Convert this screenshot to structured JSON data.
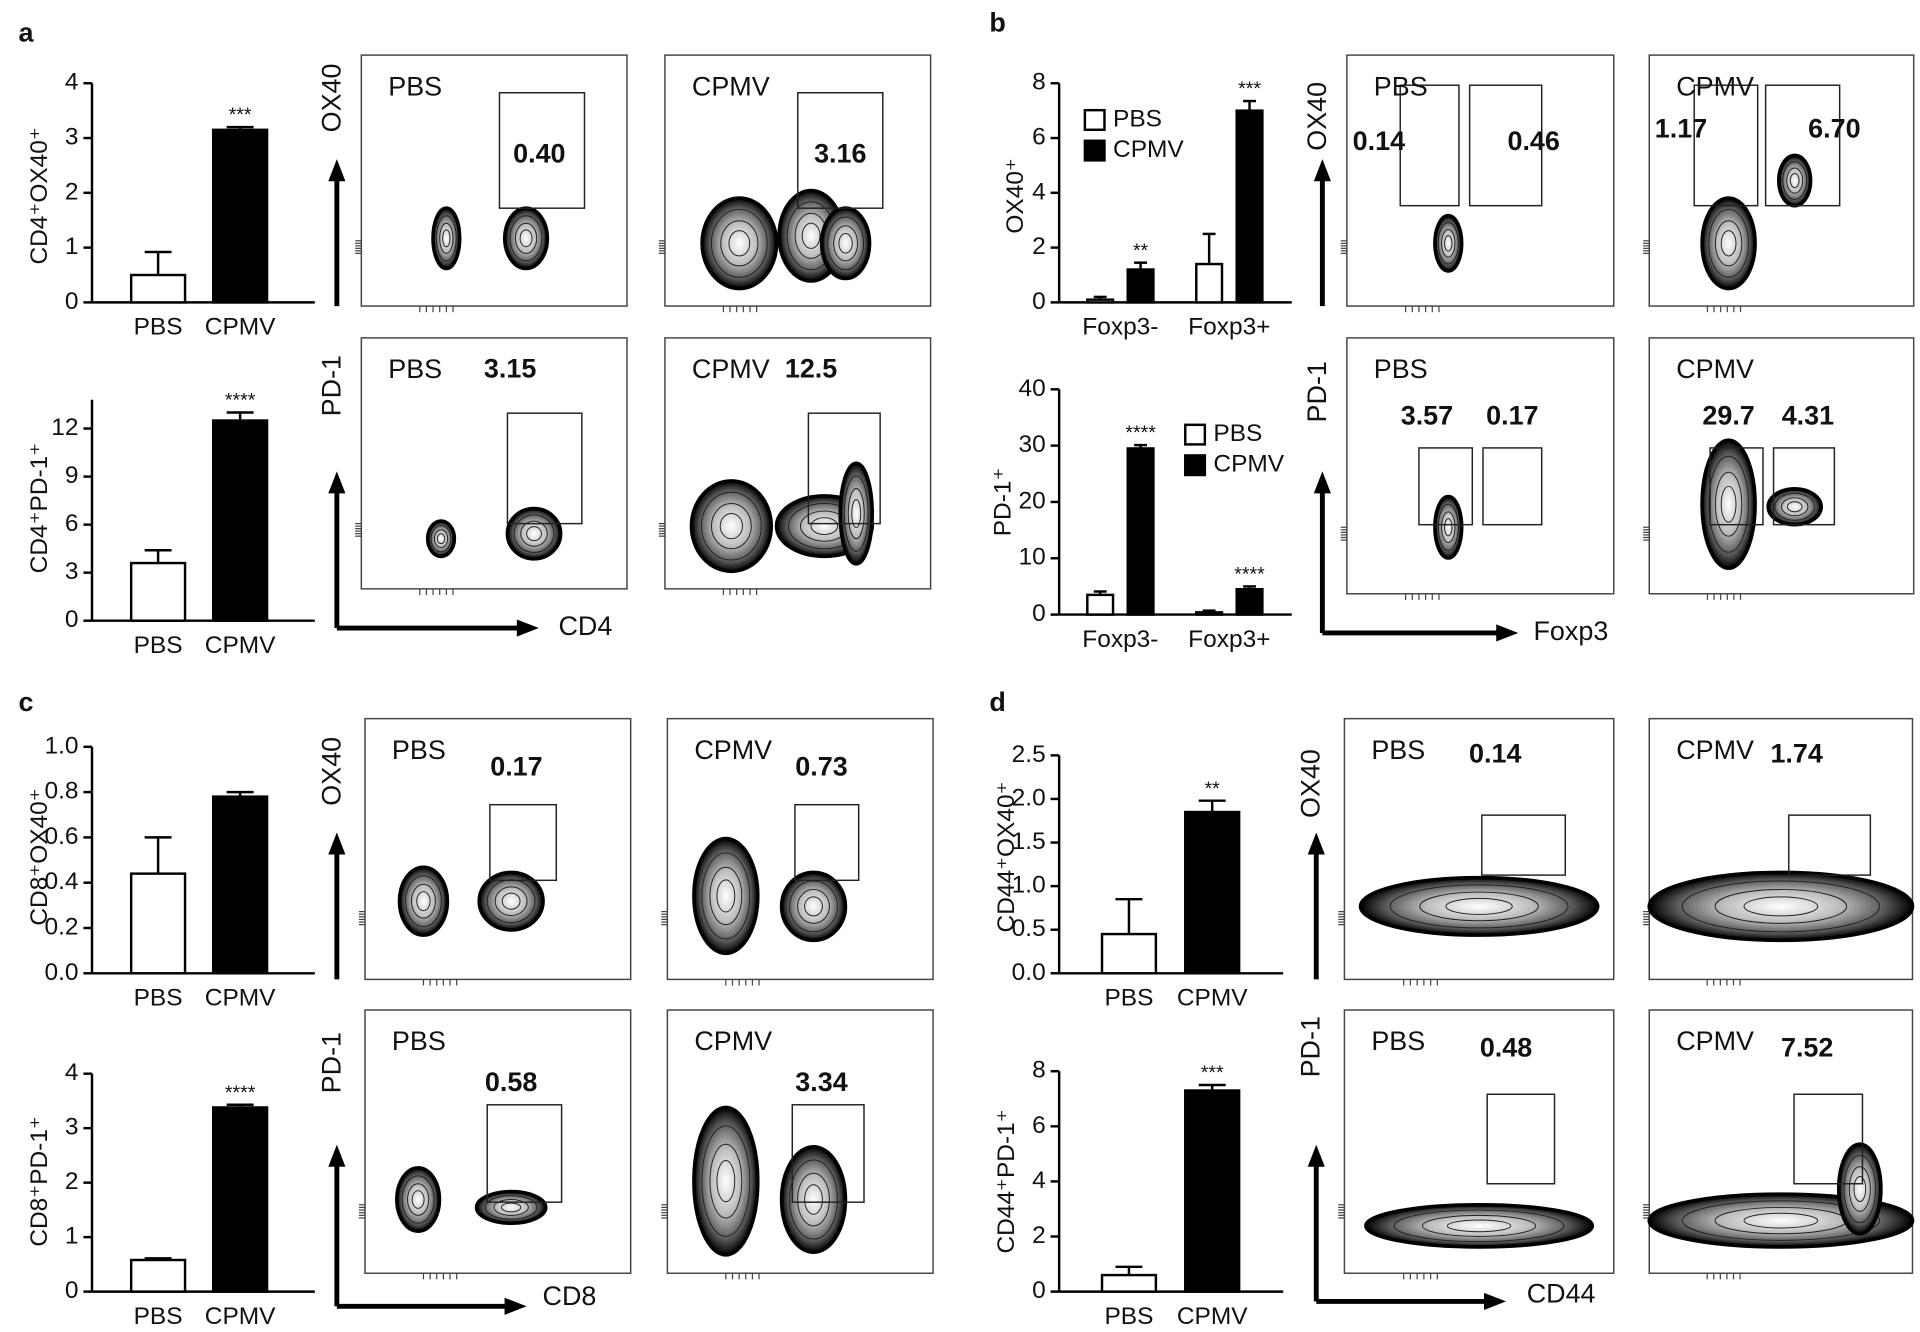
{
  "panel_labels": [
    "a",
    "b",
    "c",
    "d"
  ],
  "chart_data": [
    {
      "type": "bar",
      "ylabel": "CD4⁺OX40⁺",
      "categories": [
        "PBS",
        "CPMV"
      ],
      "values": [
        0.5,
        3.15
      ],
      "errors": [
        0.42,
        0.05
      ],
      "colors": [
        "#ffffff",
        "#000000"
      ],
      "significance": [
        null,
        "***"
      ],
      "ylim": [
        0,
        4
      ],
      "yticks": [
        0,
        1,
        2,
        3,
        4
      ]
    },
    {
      "type": "bar",
      "ylabel": "CD4⁺PD-1⁺",
      "categories": [
        "PBS",
        "CPMV"
      ],
      "values": [
        3.6,
        12.5
      ],
      "errors": [
        0.8,
        0.5
      ],
      "colors": [
        "#ffffff",
        "#000000"
      ],
      "significance": [
        null,
        "****"
      ],
      "ylim": [
        0,
        13.8
      ],
      "yticks": [
        0,
        3,
        6,
        9,
        12
      ]
    },
    {
      "type": "flow",
      "ylabel": "OX40",
      "plots": [
        {
          "label": "PBS",
          "values": [
            0.4
          ],
          "value_labels": [
            "0.40"
          ]
        },
        {
          "label": "CPMV",
          "values": [
            3.16
          ],
          "value_labels": [
            "3.16"
          ]
        }
      ]
    },
    {
      "type": "flow",
      "ylabel": "PD-1",
      "xlabel": "CD4",
      "plots": [
        {
          "label": "PBS",
          "values": [
            3.15
          ],
          "value_labels": [
            "3.15"
          ]
        },
        {
          "label": "CPMV",
          "values": [
            12.5
          ],
          "value_labels": [
            "12.5"
          ]
        }
      ]
    },
    {
      "type": "bar",
      "ylabel": "OX40⁺",
      "categories": [
        "Foxp3-",
        "Foxp3+"
      ],
      "series": [
        {
          "name": "PBS",
          "color": "#ffffff",
          "values": [
            0.1,
            1.4
          ],
          "errors": [
            0.1,
            1.1
          ]
        },
        {
          "name": "CPMV",
          "color": "#000000",
          "values": [
            1.2,
            7.0
          ],
          "errors": [
            0.25,
            0.35
          ],
          "significance": [
            "**",
            "***"
          ]
        }
      ],
      "ylim": [
        0,
        8
      ],
      "yticks": [
        0,
        2,
        4,
        6,
        8
      ]
    },
    {
      "type": "bar",
      "ylabel": "PD-1⁺",
      "categories": [
        "Foxp3-",
        "Foxp3+"
      ],
      "series": [
        {
          "name": "PBS",
          "color": "#ffffff",
          "values": [
            3.5,
            0.4
          ],
          "errors": [
            0.6,
            0.3
          ]
        },
        {
          "name": "CPMV",
          "color": "#000000",
          "values": [
            29.5,
            4.5
          ],
          "errors": [
            0.6,
            0.5
          ],
          "significance": [
            "****",
            "****"
          ]
        }
      ],
      "ylim": [
        0,
        40
      ],
      "yticks": [
        0,
        10,
        20,
        30,
        40
      ]
    },
    {
      "type": "flow",
      "ylabel": "OX40",
      "plots": [
        {
          "label": "PBS",
          "values": [
            0.14,
            0.46
          ],
          "value_labels": [
            "0.14",
            "0.46"
          ]
        },
        {
          "label": "CPMV",
          "values": [
            1.17,
            6.7
          ],
          "value_labels": [
            "1.17",
            "6.70"
          ]
        }
      ]
    },
    {
      "type": "flow",
      "ylabel": "PD-1",
      "xlabel": "Foxp3",
      "plots": [
        {
          "label": "PBS",
          "values": [
            3.57,
            0.17
          ],
          "value_labels": [
            "3.57",
            "0.17"
          ]
        },
        {
          "label": "CPMV",
          "values": [
            29.7,
            4.31
          ],
          "value_labels": [
            "29.7",
            "4.31"
          ]
        }
      ]
    },
    {
      "type": "bar",
      "ylabel": "CD8⁺OX40⁺",
      "categories": [
        "PBS",
        "CPMV"
      ],
      "values": [
        0.44,
        0.78
      ],
      "errors": [
        0.16,
        0.02
      ],
      "colors": [
        "#ffffff",
        "#000000"
      ],
      "ylim": [
        0,
        1.0
      ],
      "yticks": [
        {
          "value": 0,
          "label": "0.0"
        },
        0.2,
        0.4,
        0.6,
        0.8,
        {
          "value": 1.0,
          "label": "1.0"
        }
      ]
    },
    {
      "type": "bar",
      "ylabel": "CD8⁺PD-1⁺",
      "categories": [
        "PBS",
        "CPMV"
      ],
      "values": [
        0.58,
        3.38
      ],
      "errors": [
        0.03,
        0.05
      ],
      "colors": [
        "#ffffff",
        "#000000"
      ],
      "significance": [
        null,
        "****"
      ],
      "ylim": [
        0,
        4
      ],
      "yticks": [
        0,
        1,
        2,
        3,
        4
      ]
    },
    {
      "type": "flow",
      "ylabel": "OX40",
      "plots": [
        {
          "label": "PBS",
          "values": [
            0.17
          ],
          "value_labels": [
            "0.17"
          ]
        },
        {
          "label": "CPMV",
          "values": [
            0.73
          ],
          "value_labels": [
            "0.73"
          ]
        }
      ]
    },
    {
      "type": "flow",
      "ylabel": "PD-1",
      "xlabel": "CD8",
      "plots": [
        {
          "label": "PBS",
          "values": [
            0.58
          ],
          "value_labels": [
            "0.58"
          ]
        },
        {
          "label": "CPMV",
          "values": [
            3.34
          ],
          "value_labels": [
            "3.34"
          ]
        }
      ]
    },
    {
      "type": "bar",
      "ylabel": "CD44⁺OX40⁺",
      "categories": [
        "PBS",
        "CPMV"
      ],
      "values": [
        0.45,
        1.85
      ],
      "errors": [
        0.4,
        0.13
      ],
      "colors": [
        "#ffffff",
        "#000000"
      ],
      "significance": [
        null,
        "**"
      ],
      "ylim": [
        0,
        2.5
      ],
      "yticks": [
        {
          "value": 0,
          "label": "0.0"
        },
        0.5,
        {
          "value": 1,
          "label": "1.0"
        },
        1.5,
        {
          "value": 2,
          "label": "2.0"
        },
        2.5
      ]
    },
    {
      "type": "bar",
      "ylabel": "CD44⁺PD-1⁺",
      "categories": [
        "PBS",
        "CPMV"
      ],
      "values": [
        0.6,
        7.3
      ],
      "errors": [
        0.3,
        0.2
      ],
      "colors": [
        "#ffffff",
        "#000000"
      ],
      "significance": [
        null,
        "***"
      ],
      "ylim": [
        0,
        8
      ],
      "yticks": [
        0,
        2,
        4,
        6,
        8
      ]
    },
    {
      "type": "flow",
      "ylabel": "OX40",
      "plots": [
        {
          "label": "PBS",
          "values": [
            0.14
          ],
          "value_labels": [
            "0.14"
          ]
        },
        {
          "label": "CPMV",
          "values": [
            1.74
          ],
          "value_labels": [
            "1.74"
          ]
        }
      ]
    },
    {
      "type": "flow",
      "ylabel": "PD-1",
      "xlabel": "CD44",
      "plots": [
        {
          "label": "PBS",
          "values": [
            0.48
          ],
          "value_labels": [
            "0.48"
          ]
        },
        {
          "label": "CPMV",
          "values": [
            7.52
          ],
          "value_labels": [
            "7.52"
          ]
        }
      ]
    }
  ]
}
